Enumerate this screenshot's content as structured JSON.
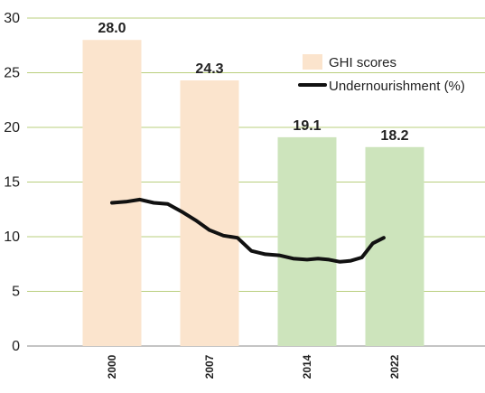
{
  "chart_data": {
    "type": "bar",
    "categories": [
      "2000",
      "2007",
      "2014",
      "2022"
    ],
    "series": [
      {
        "name": "GHI scores",
        "type": "bar",
        "values": [
          28.0,
          24.3,
          19.1,
          18.2
        ],
        "value_labels": [
          "28.0",
          "24.3",
          "19.1",
          "18.2"
        ],
        "bar_colors": [
          "#fbe4cd",
          "#fbe4cd",
          "#cde4bc",
          "#cde4bc"
        ]
      },
      {
        "name": "Undernourishment (%)",
        "type": "line",
        "color": "#111111",
        "points": [
          [
            2000,
            13.1
          ],
          [
            2001,
            13.2
          ],
          [
            2002,
            13.4
          ],
          [
            2003,
            13.1
          ],
          [
            2004,
            13.0
          ],
          [
            2005,
            12.3
          ],
          [
            2006,
            11.5
          ],
          [
            2007,
            10.6
          ],
          [
            2008,
            10.1
          ],
          [
            2009,
            9.9
          ],
          [
            2010,
            8.7
          ],
          [
            2011,
            8.4
          ],
          [
            2012,
            8.3
          ],
          [
            2013,
            8.0
          ],
          [
            2014,
            7.9
          ],
          [
            2015,
            8.0
          ],
          [
            2016,
            7.9
          ],
          [
            2017,
            7.7
          ],
          [
            2018,
            7.8
          ],
          [
            2019,
            8.1
          ],
          [
            2020,
            9.4
          ],
          [
            2021,
            9.9
          ]
        ]
      }
    ],
    "ylim": [
      0,
      30
    ],
    "yticks": [
      0,
      5,
      10,
      15,
      20,
      25,
      30
    ],
    "grid": "horizontal",
    "legend_position": "top-right",
    "colors": {
      "grid": "#b9cf7e",
      "axis": "#888888"
    }
  }
}
